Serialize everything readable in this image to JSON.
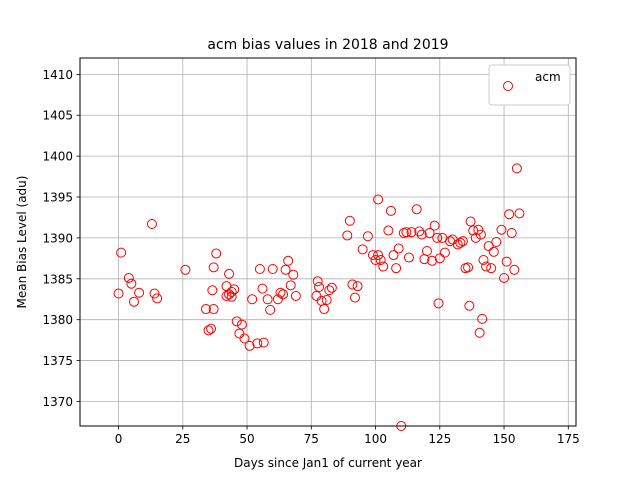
{
  "chart_data": {
    "type": "scatter",
    "title": "acm bias values in 2018 and 2019",
    "xlabel": "Days since Jan1 of current year",
    "ylabel": "Mean Bias Level (adu)",
    "xlim": [
      -15,
      178
    ],
    "ylim": [
      1367,
      1412
    ],
    "xticks": [
      0,
      25,
      50,
      75,
      100,
      125,
      150,
      175
    ],
    "yticks": [
      1370,
      1375,
      1380,
      1385,
      1390,
      1395,
      1400,
      1405,
      1410
    ],
    "grid": true,
    "legend_position": "top-right",
    "series": [
      {
        "name": "acm",
        "marker": "open-circle",
        "color": "#ff0000",
        "points": [
          [
            0,
            1383.2
          ],
          [
            1,
            1388.2
          ],
          [
            4,
            1385.1
          ],
          [
            5,
            1384.4
          ],
          [
            6,
            1382.2
          ],
          [
            8,
            1383.3
          ],
          [
            13,
            1391.7
          ],
          [
            14,
            1383.2
          ],
          [
            15,
            1382.6
          ],
          [
            26,
            1386.1
          ],
          [
            34,
            1381.3
          ],
          [
            35,
            1378.7
          ],
          [
            36,
            1378.9
          ],
          [
            36.5,
            1383.6
          ],
          [
            37,
            1381.3
          ],
          [
            37,
            1386.4
          ],
          [
            38,
            1388.1
          ],
          [
            42,
            1384.1
          ],
          [
            42,
            1382.9
          ],
          [
            43,
            1385.6
          ],
          [
            43,
            1383.1
          ],
          [
            44,
            1382.8
          ],
          [
            44,
            1383.4
          ],
          [
            45,
            1383.7
          ],
          [
            46,
            1379.8
          ],
          [
            47,
            1378.3
          ],
          [
            48,
            1379.4
          ],
          [
            49,
            1377.7
          ],
          [
            51,
            1376.8
          ],
          [
            52,
            1382.5
          ],
          [
            54,
            1377.1
          ],
          [
            55,
            1386.2
          ],
          [
            56,
            1383.8
          ],
          [
            56.5,
            1377.2
          ],
          [
            58,
            1382.5
          ],
          [
            59,
            1381.2
          ],
          [
            60,
            1386.2
          ],
          [
            62,
            1382.5
          ],
          [
            63,
            1383.3
          ],
          [
            64,
            1383.1
          ],
          [
            65,
            1386.1
          ],
          [
            66,
            1387.2
          ],
          [
            67,
            1384.2
          ],
          [
            68,
            1385.5
          ],
          [
            69,
            1382.9
          ],
          [
            77,
            1382.9
          ],
          [
            77.5,
            1384.7
          ],
          [
            78,
            1384.0
          ],
          [
            79,
            1382.3
          ],
          [
            80,
            1381.3
          ],
          [
            81,
            1382.4
          ],
          [
            82,
            1383.6
          ],
          [
            83,
            1383.9
          ],
          [
            89,
            1390.3
          ],
          [
            90,
            1392.1
          ],
          [
            91,
            1384.3
          ],
          [
            92,
            1382.7
          ],
          [
            93,
            1384.1
          ],
          [
            95,
            1388.6
          ],
          [
            97,
            1390.2
          ],
          [
            99,
            1387.9
          ],
          [
            100,
            1387.3
          ],
          [
            101,
            1394.7
          ],
          [
            101,
            1387.9
          ],
          [
            102,
            1387.3
          ],
          [
            103,
            1386.5
          ],
          [
            105,
            1390.9
          ],
          [
            106,
            1393.3
          ],
          [
            107,
            1387.9
          ],
          [
            108,
            1386.3
          ],
          [
            109,
            1388.7
          ],
          [
            110,
            1367.0
          ],
          [
            111,
            1390.6
          ],
          [
            112,
            1390.7
          ],
          [
            113,
            1387.6
          ],
          [
            114,
            1390.7
          ],
          [
            116,
            1393.5
          ],
          [
            117,
            1390.8
          ],
          [
            118,
            1390.4
          ],
          [
            119,
            1387.4
          ],
          [
            120,
            1388.4
          ],
          [
            121,
            1390.6
          ],
          [
            122,
            1387.2
          ],
          [
            123,
            1391.5
          ],
          [
            124,
            1390.0
          ],
          [
            124.5,
            1382.0
          ],
          [
            125,
            1387.5
          ],
          [
            126,
            1390.0
          ],
          [
            127,
            1388.2
          ],
          [
            129,
            1389.6
          ],
          [
            130,
            1389.8
          ],
          [
            132,
            1389.2
          ],
          [
            133,
            1389.4
          ],
          [
            134,
            1389.6
          ],
          [
            135,
            1386.3
          ],
          [
            136,
            1386.4
          ],
          [
            136.5,
            1381.7
          ],
          [
            137,
            1392.0
          ],
          [
            138,
            1390.9
          ],
          [
            139,
            1390.0
          ],
          [
            140,
            1391.0
          ],
          [
            140.5,
            1378.4
          ],
          [
            141,
            1390.4
          ],
          [
            141.5,
            1380.1
          ],
          [
            142,
            1387.3
          ],
          [
            143,
            1386.5
          ],
          [
            144,
            1389.0
          ],
          [
            145,
            1386.3
          ],
          [
            146,
            1388.3
          ],
          [
            147,
            1389.5
          ],
          [
            149,
            1391.0
          ],
          [
            150,
            1385.1
          ],
          [
            151,
            1387.1
          ],
          [
            151.5,
            1408.2
          ],
          [
            152,
            1392.9
          ],
          [
            153,
            1390.6
          ],
          [
            154,
            1386.1
          ],
          [
            155,
            1398.5
          ],
          [
            156,
            1393.0
          ]
        ]
      }
    ]
  }
}
